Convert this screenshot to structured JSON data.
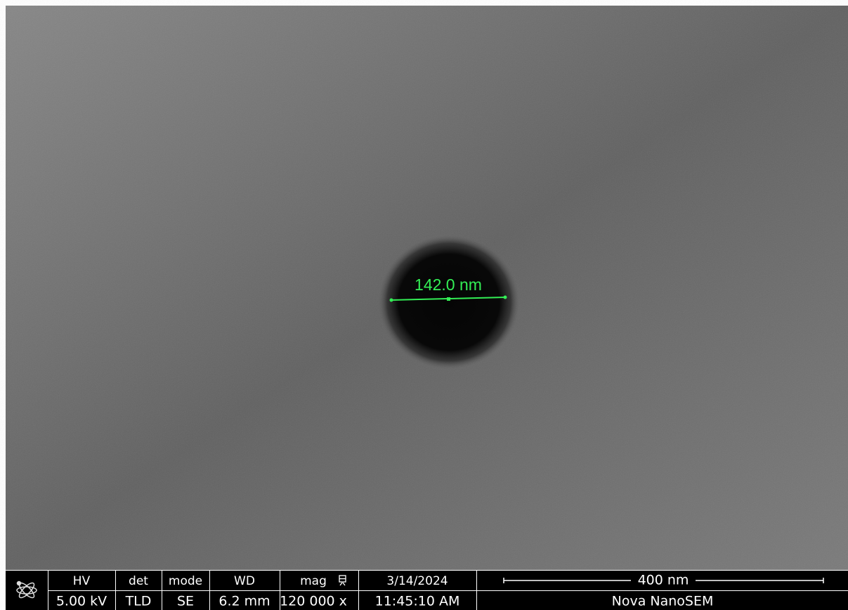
{
  "measurement": {
    "label": "142.0 nm"
  },
  "info_bar": {
    "columns": [
      {
        "header": "HV",
        "value": "5.00 kV"
      },
      {
        "header": "det",
        "value": "TLD"
      },
      {
        "header": "mode",
        "value": "SE"
      },
      {
        "header": "WD",
        "value": "6.2 mm"
      },
      {
        "header": "mag",
        "value": "120 000 x"
      }
    ],
    "date": "3/14/2024",
    "time": "11:45:10 AM",
    "scale_bar": "400 nm",
    "instrument": "Nova NanoSEM"
  }
}
